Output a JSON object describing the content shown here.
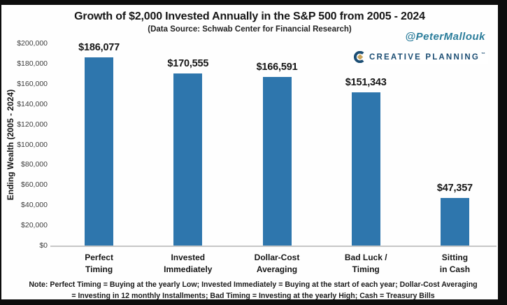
{
  "branding": {
    "handle": "@PeterMallouk",
    "handle_color": "#2B7D9B",
    "logo_text": "CREATIVE PLANNING",
    "logo_mark": "™",
    "logo_navy": "#1C4E74",
    "logo_gold": "#C9A45C"
  },
  "note": "Note: Perfect Timing = Buying at the yearly Low; Invested Immediately = Buying at the start of each year; Dollar-Cost Averaging = Investing in 12 monthly Installments; Bad Timing = Investing at the yearly High; Cash = Treasury Bills",
  "chart_data": {
    "type": "bar",
    "title": "Growth of $2,000 Invested Annually in the S&P 500 from 2005 - 2024",
    "subtitle": "(Data Source: Schwab Center for Financial Research)",
    "ylabel": "Ending Wealth (2005 - 2024)",
    "categories": [
      "Perfect Timing",
      "Invested Immediately",
      "Dollar-Cost Averaging",
      "Bad Luck / Timing",
      "Sitting in Cash"
    ],
    "categories_display": [
      "Perfect\nTiming",
      "Invested\nImmediately",
      "Dollar-Cost\nAveraging",
      "Bad Luck /\nTiming",
      "Sitting\nin Cash"
    ],
    "values": [
      186077,
      170555,
      166591,
      151343,
      47357
    ],
    "value_labels": [
      "$186,077",
      "$170,555",
      "$166,591",
      "$151,343",
      "$47,357"
    ],
    "ylim": [
      0,
      200000
    ],
    "ytick_step": 20000,
    "ytick_labels": [
      "$0",
      "$20,000",
      "$40,000",
      "$60,000",
      "$80,000",
      "$100,000",
      "$120,000",
      "$140,000",
      "$160,000",
      "$180,000",
      "$200,000"
    ],
    "bar_color": "#2E76AD",
    "grid": false,
    "legend_position": "none"
  }
}
